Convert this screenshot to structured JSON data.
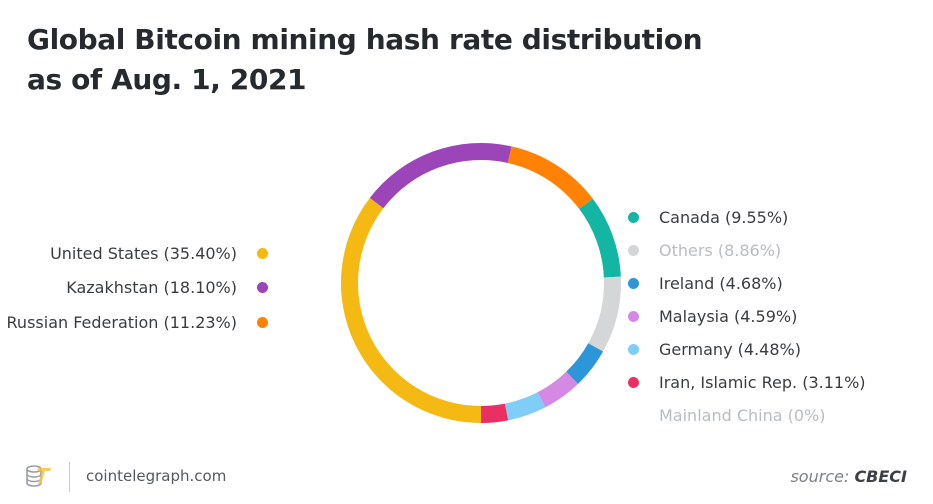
{
  "chart_data": {
    "type": "pie",
    "variant": "donut",
    "title": "Global Bitcoin mining hash rate distribution as of Aug. 1, 2021",
    "title_lines": [
      "Global Bitcoin mining hash rate distribution",
      "as of Aug. 1, 2021"
    ],
    "unit": "%",
    "start": "bottom",
    "direction": "clockwise",
    "slices": [
      {
        "name": "United States",
        "value": 35.4,
        "label": "United States (35.40%)",
        "color": "#f5b914",
        "legend": "left"
      },
      {
        "name": "Kazakhstan",
        "value": 18.1,
        "label": "Kazakhstan (18.10%)",
        "color": "#9b45b8",
        "legend": "left"
      },
      {
        "name": "Russian Federation",
        "value": 11.23,
        "label": "Russian Federation (11.23%)",
        "color": "#ff8205",
        "legend": "left"
      },
      {
        "name": "Canada",
        "value": 9.55,
        "label": "Canada (9.55%)",
        "color": "#13b5a3",
        "legend": "right"
      },
      {
        "name": "Others",
        "value": 8.86,
        "label": "Others (8.86%)",
        "color": "#d4d6d8",
        "legend": "right",
        "muted": true
      },
      {
        "name": "Ireland",
        "value": 4.68,
        "label": "Ireland (4.68%)",
        "color": "#2c96d8",
        "legend": "right"
      },
      {
        "name": "Malaysia",
        "value": 4.59,
        "label": "Malaysia (4.59%)",
        "color": "#d48ae4",
        "legend": "right"
      },
      {
        "name": "Germany",
        "value": 4.48,
        "label": "Germany (4.48%)",
        "color": "#80cdf8",
        "legend": "right"
      },
      {
        "name": "Iran, Islamic Rep.",
        "value": 3.11,
        "label": "Iran, Islamic Rep. (3.11%)",
        "color": "#ec2f63",
        "legend": "right"
      },
      {
        "name": "Mainland China",
        "value": 0,
        "label": "Mainland China (0%)",
        "color": null,
        "legend": "right",
        "muted": true
      }
    ]
  },
  "footer": {
    "site": "cointelegraph.com",
    "source_prefix": "source: ",
    "source_name": "CBECI",
    "logo_icon": "cointelegraph-logo-icon"
  }
}
